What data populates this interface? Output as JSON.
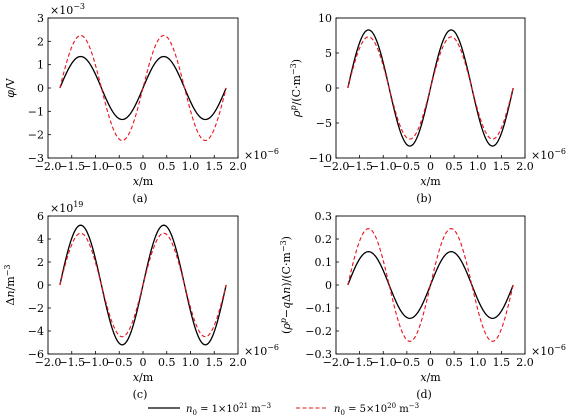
{
  "legend": {
    "solid": {
      "label": "n",
      "sub": "0",
      "mid": " = 1×10",
      "sup": "21",
      "unit": " m",
      "usup": "−3"
    },
    "dashed": {
      "label": "n",
      "sub": "0",
      "mid": " = 5×10",
      "sup": "20",
      "unit": " m",
      "usup": "−3"
    }
  },
  "colors": {
    "solid": "#000000",
    "dashed": "#e8141b"
  },
  "chart_data": [
    {
      "id": "a",
      "type": "line",
      "sublabel": "(a)",
      "ylabel": "φ/V",
      "xlabel": "x/m",
      "xscale": "×10⁻⁶",
      "yscale": "×10⁻³",
      "xlim": [
        -2.0,
        2.0
      ],
      "ylim": [
        -3,
        3
      ],
      "xticks": [
        "−2.0",
        "−1.5",
        "−1.0",
        "−0.5",
        "0",
        "0.5",
        "1.0",
        "1.5",
        "2.0"
      ],
      "yticks": [
        "−3",
        "−2",
        "−1",
        "0",
        "1",
        "2",
        "3"
      ],
      "x_range": [
        -1.75,
        1.75
      ],
      "waveform": "sine, period ≈ 1.75e-6 m, peaks at x ≈ −1.31 and 0.44, troughs at x ≈ −0.44 and 1.31",
      "series": [
        {
          "style": "solid",
          "amplitude": 1.35
        },
        {
          "style": "dashed",
          "amplitude": 2.25
        }
      ]
    },
    {
      "id": "b",
      "type": "line",
      "sublabel": "(b)",
      "ylabel": "ρᵖ/(C·m⁻³)",
      "xlabel": "x/m",
      "xscale": "×10⁻⁶",
      "yscale": "",
      "xlim": [
        -2.0,
        2.0
      ],
      "ylim": [
        -10,
        10
      ],
      "xticks": [
        "−2.0",
        "−1.5",
        "−1.0",
        "−0.5",
        "0",
        "0.5",
        "1.0",
        "1.5",
        "2.0"
      ],
      "yticks": [
        "−10",
        "−5",
        "0",
        "5",
        "10"
      ],
      "x_range": [
        -1.75,
        1.75
      ],
      "series": [
        {
          "style": "solid",
          "amplitude": 8.3
        },
        {
          "style": "dashed",
          "amplitude": 7.3
        }
      ]
    },
    {
      "id": "c",
      "type": "line",
      "sublabel": "(c)",
      "ylabel": "Δn/m⁻³",
      "xlabel": "x/m",
      "xscale": "×10⁻⁶",
      "yscale": "×10¹⁹",
      "xlim": [
        -2.0,
        2.0
      ],
      "ylim": [
        -6,
        6
      ],
      "xticks": [
        "−2.0",
        "−1.5",
        "−1.0",
        "−0.5",
        "0",
        "0.5",
        "1.0",
        "1.5",
        "2.0"
      ],
      "yticks": [
        "−6",
        "−4",
        "−2",
        "0",
        "2",
        "4",
        "6"
      ],
      "x_range": [
        -1.75,
        1.75
      ],
      "series": [
        {
          "style": "solid",
          "amplitude": 5.2
        },
        {
          "style": "dashed",
          "amplitude": 4.5
        }
      ]
    },
    {
      "id": "d",
      "type": "line",
      "sublabel": "(d)",
      "ylabel": "(ρᵖ−qΔn)/(C·m⁻³)",
      "xlabel": "x/m",
      "xscale": "×10⁻⁶",
      "yscale": "",
      "xlim": [
        -2.0,
        2.0
      ],
      "ylim": [
        -0.3,
        0.3
      ],
      "xticks": [
        "−2.0",
        "−1.5",
        "−1.0",
        "−0.5",
        "0",
        "0.5",
        "1.0",
        "1.5",
        "2.0"
      ],
      "yticks": [
        "−0.3",
        "−0.2",
        "−0.1",
        "0",
        "0.1",
        "0.2",
        "0.3"
      ],
      "x_range": [
        -1.75,
        1.75
      ],
      "series": [
        {
          "style": "solid",
          "amplitude": 0.145
        },
        {
          "style": "dashed",
          "amplitude": 0.245
        }
      ]
    }
  ]
}
